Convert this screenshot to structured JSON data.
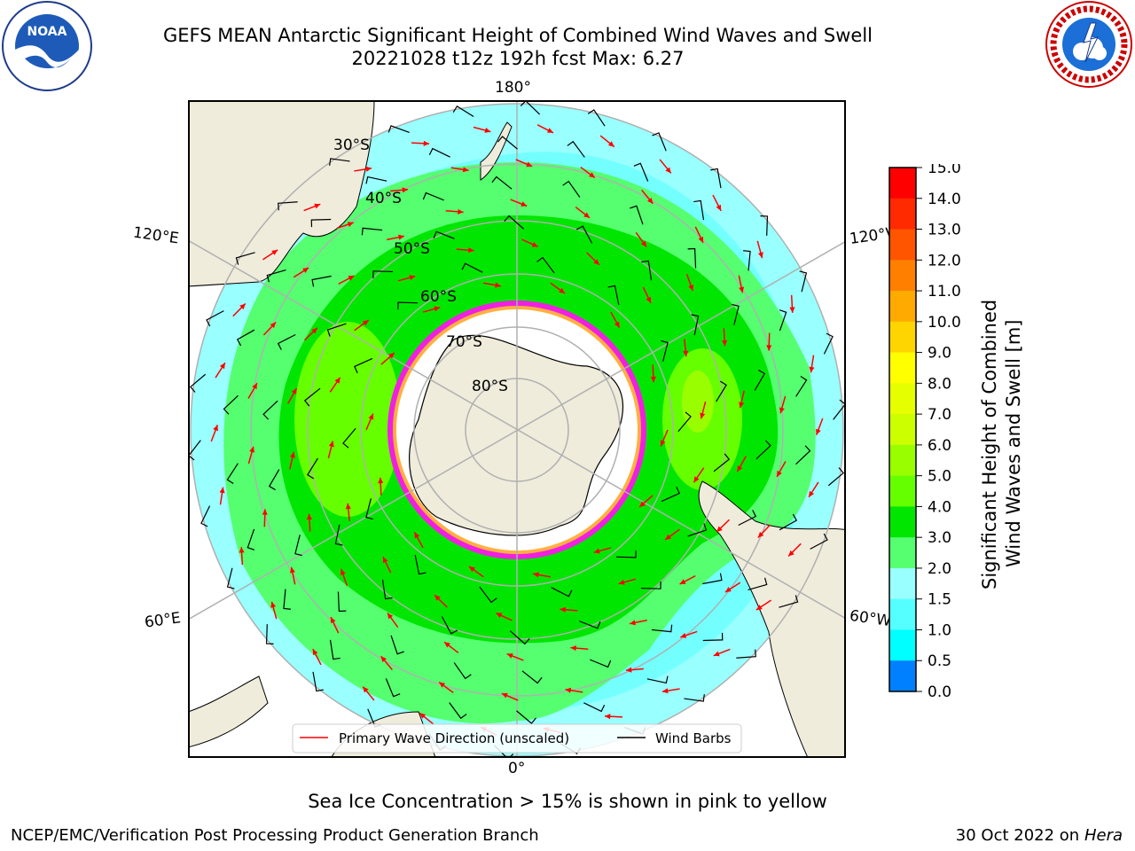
{
  "header": {
    "title_line1": "GEFS MEAN Antarctic Significant Height of Combined Wind Waves and Swell",
    "title_line2": "20221028 t12z 192h fcst   Max: 6.27"
  },
  "logos": {
    "left": "noaa-logo",
    "left_text": "NOAA",
    "right": "national-weather-service-logo"
  },
  "map": {
    "projection": "south-polar-stereographic",
    "lon_labels": [
      "180°",
      "120°E",
      "120°W",
      "60°E",
      "60°W",
      "0°"
    ],
    "lat_labels": [
      "30°S",
      "40°S",
      "50°S",
      "60°S",
      "70°S",
      "80°S"
    ],
    "colors": {
      "land": "#efecdc",
      "ice_shelf": "#ffffff",
      "sea_ice_edge": "#f020e0",
      "sea_ice_inner": "#ffb040",
      "wave_arrow": "#ff0000",
      "wind_barb": "#000000",
      "grid": "#b0b0b0"
    },
    "legend": {
      "wave_label": "Primary Wave Direction (unscaled)",
      "wind_label": "Wind Barbs"
    }
  },
  "colorbar": {
    "label_line1": "Significant Height of Combined",
    "label_line2": "Wind Waves and Swell [m]",
    "ticks": [
      "15.0",
      "14.0",
      "13.0",
      "12.0",
      "11.0",
      "10.0",
      "9.0",
      "8.0",
      "7.0",
      "6.0",
      "5.0",
      "4.0",
      "3.0",
      "2.0",
      "1.5",
      "1.0",
      "0.5",
      "0.0"
    ],
    "colors_top_to_bottom": [
      "#ff0000",
      "#ff2a00",
      "#ff5500",
      "#ff8000",
      "#ffaa00",
      "#ffd500",
      "#ffff00",
      "#e6ff00",
      "#ccff00",
      "#99ff00",
      "#66ff00",
      "#00e600",
      "#55ff70",
      "#99ffff",
      "#55ffff",
      "#00ffff",
      "#0080ff",
      "#0000ff"
    ]
  },
  "footer": {
    "sea_ice_note": "Sea Ice Concentration > 15% is shown in pink to yellow",
    "credit": "NCEP/EMC/Verification Post Processing Product Generation Branch",
    "date": "30 Oct 2022 on ",
    "machine": "Hera"
  }
}
